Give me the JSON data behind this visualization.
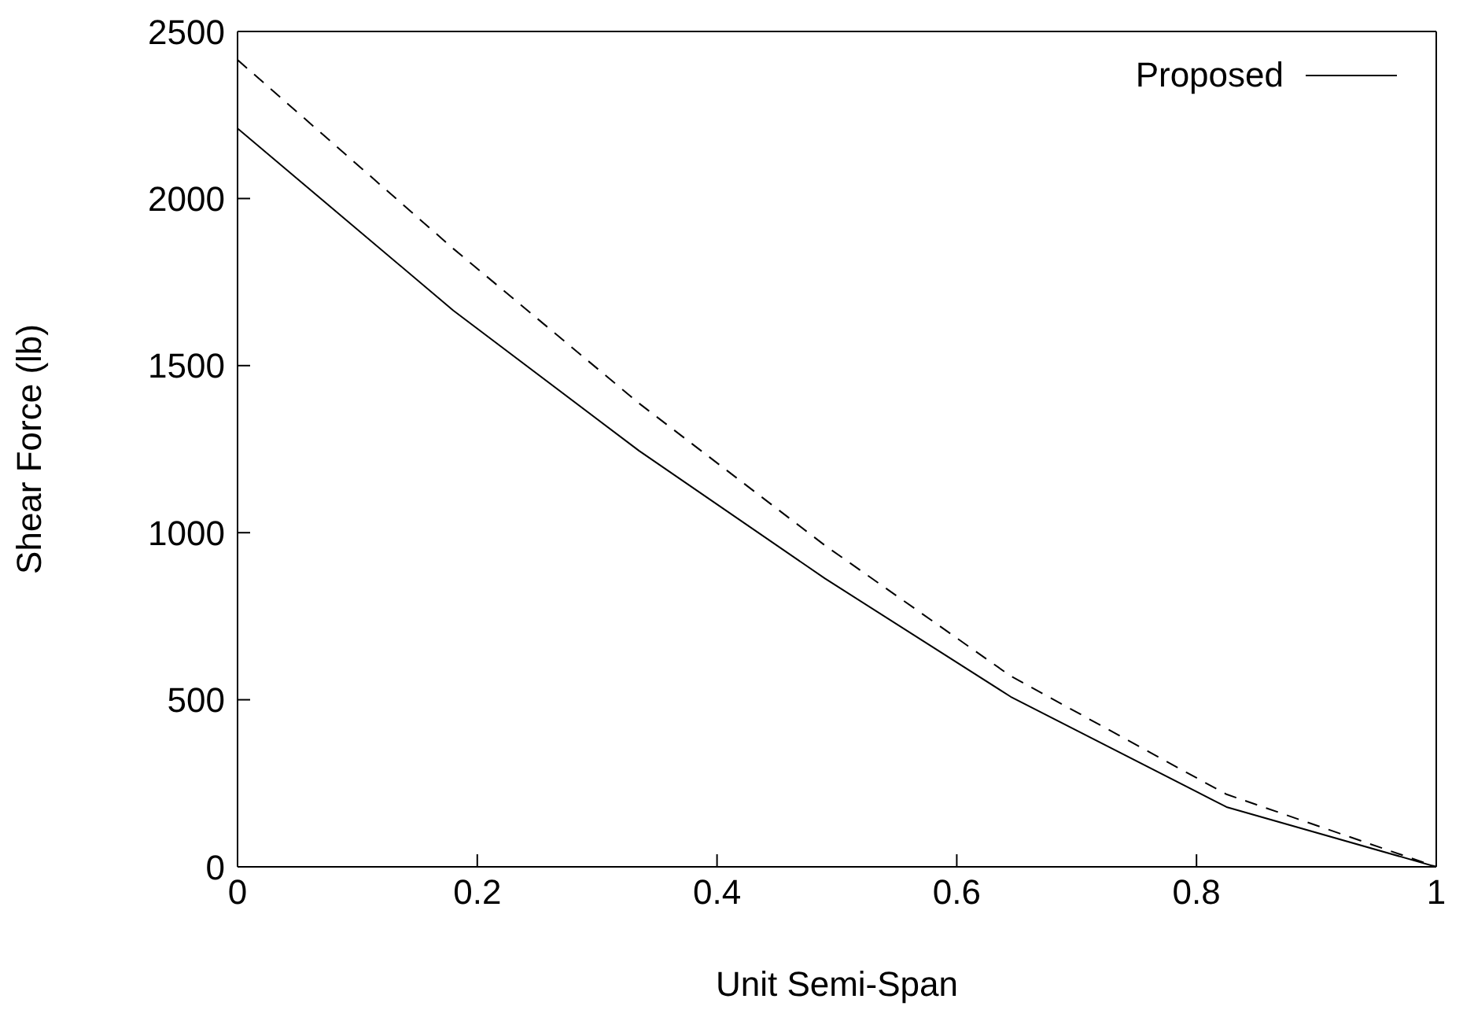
{
  "chart_data": {
    "type": "line",
    "xlabel": "Unit Semi-Span",
    "ylabel": "Shear Force (lb)",
    "x": [
      0,
      0.18,
      0.335,
      0.49,
      0.645,
      0.825,
      1
    ],
    "series": [
      {
        "name": "Proposed",
        "color": "#000000",
        "line_style": "solid",
        "values": [
          2210,
          1665,
          1245,
          863,
          509,
          179,
          0
        ]
      },
      {
        "color": "#000000",
        "line_style": "dashed",
        "values": [
          2415,
          1850,
          1387,
          962,
          571,
          217,
          0
        ]
      }
    ],
    "xlim": [
      0,
      1
    ],
    "xticks": [
      0,
      0.2,
      0.4,
      0.6,
      0.8,
      1
    ],
    "ylim": [
      0,
      2500
    ],
    "yticks": [
      0,
      500,
      1000,
      1500,
      2000,
      2500
    ],
    "grid": false,
    "legend": "top right",
    "marker": "none"
  }
}
